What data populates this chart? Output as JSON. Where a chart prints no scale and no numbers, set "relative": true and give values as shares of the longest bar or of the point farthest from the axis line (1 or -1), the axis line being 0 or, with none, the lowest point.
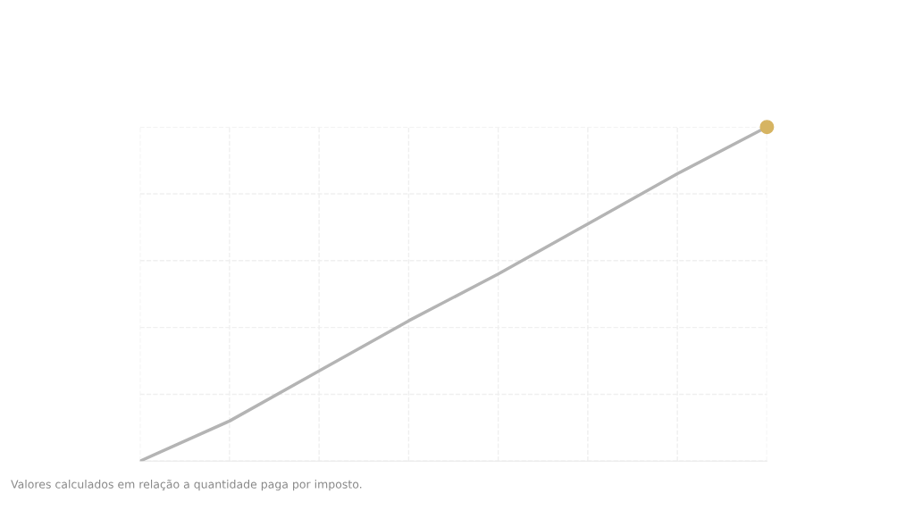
{
  "chart_data": {
    "type": "line",
    "relative": true,
    "categories": [
      null,
      null,
      null,
      null,
      null,
      null,
      null,
      null
    ],
    "series": [
      {
        "color": "#b4b4b4",
        "values": [
          0,
          0.12,
          0.27,
          0.42,
          0.56,
          0.71,
          0.86,
          1
        ]
      }
    ],
    "grid": true,
    "line_style": "solid",
    "annotations": [
      "Valores calculados em relação a quantidade paga por imposto."
    ]
  }
}
